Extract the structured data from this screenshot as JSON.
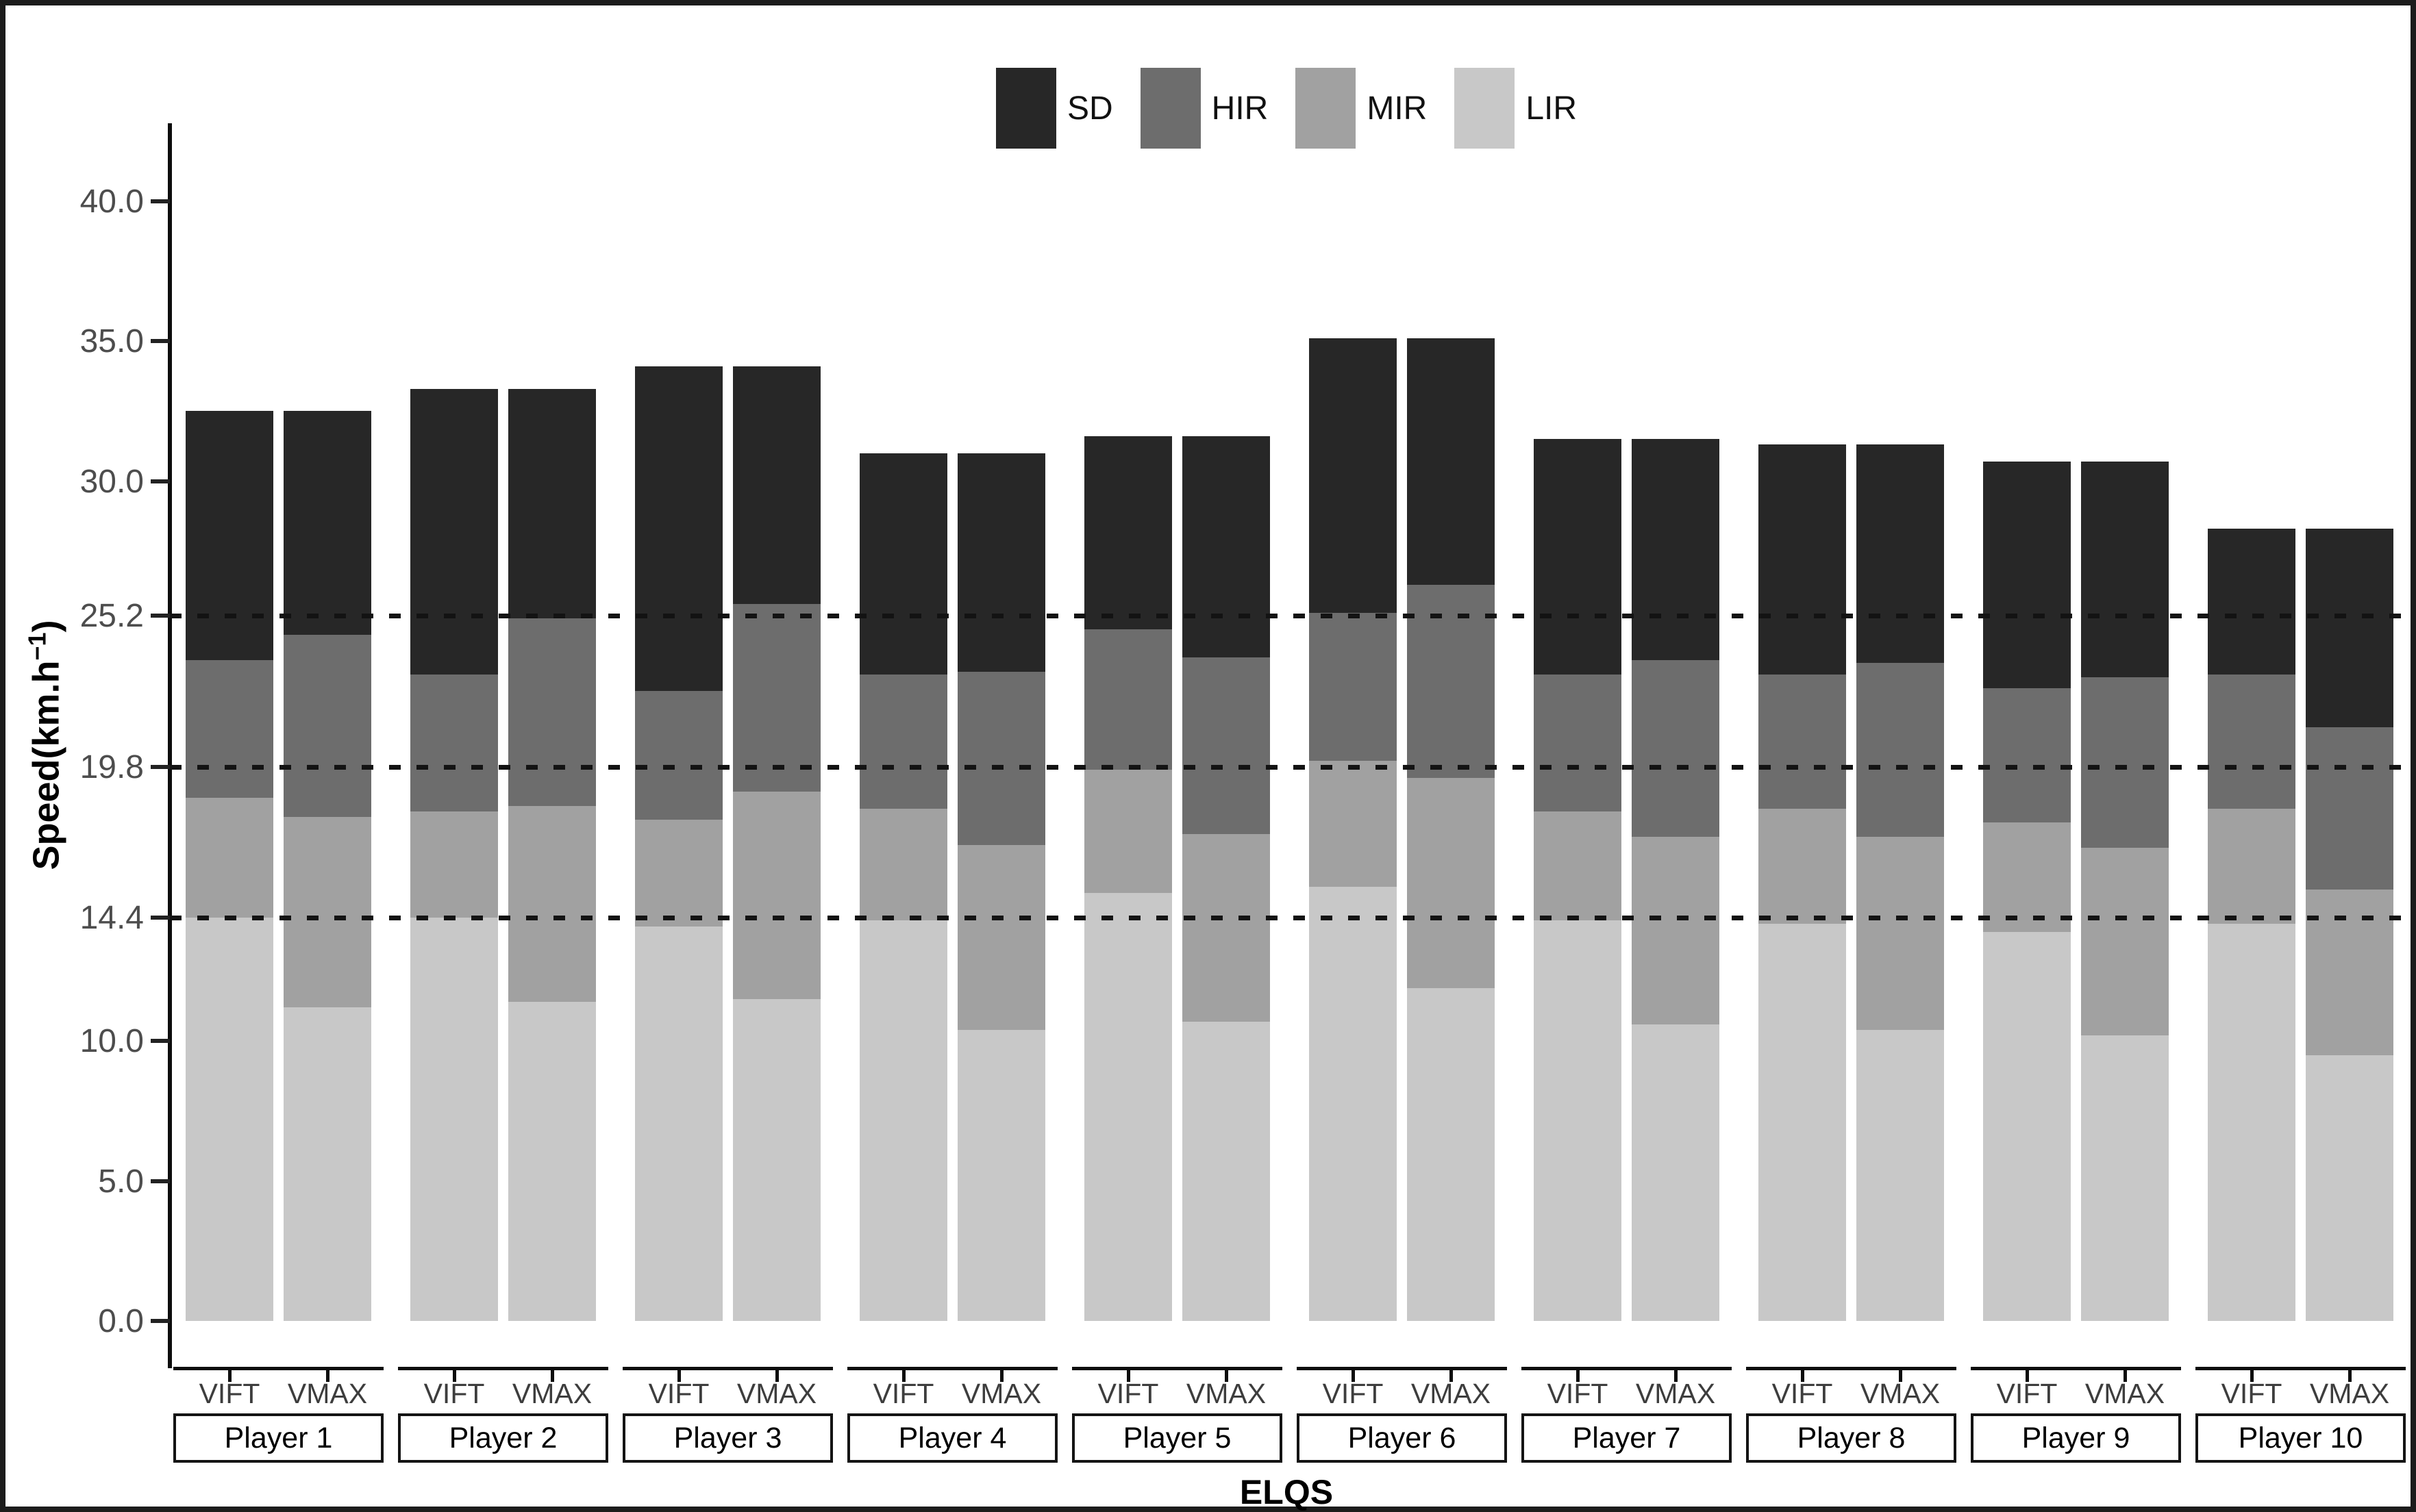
{
  "figure": {
    "ylabel_prefix": "Speed(km.h",
    "ylabel_sup": "−1",
    "ylabel_suffix": ")",
    "xlabel": "ELQS"
  },
  "legend": {
    "items": [
      {
        "label": "SD",
        "color": "#272727"
      },
      {
        "label": "HIR",
        "color": "#6d6d6d"
      },
      {
        "label": "MIR",
        "color": "#a1a1a1"
      },
      {
        "label": "LIR",
        "color": "#c8c8c8"
      }
    ]
  },
  "chart_data": {
    "type": "bar",
    "stacked": true,
    "orientation": "vertical",
    "ylabel": "Speed(km.h-1)",
    "xlabel": "ELQS",
    "legend_position": "top-center",
    "ylim": [
      0,
      42
    ],
    "yticks": [
      {
        "value": 0,
        "label": "0.0"
      },
      {
        "value": 5,
        "label": "5.0"
      },
      {
        "value": 10,
        "label": "10.0"
      },
      {
        "value": 14.4,
        "label": "14.4"
      },
      {
        "value": 19.8,
        "label": "19.8"
      },
      {
        "value": 25.2,
        "label": "25.2"
      },
      {
        "value": 30,
        "label": "30.0"
      },
      {
        "value": 35,
        "label": "35.0"
      },
      {
        "value": 40,
        "label": "40.0"
      }
    ],
    "ref_lines": [
      14.4,
      19.8,
      25.2
    ],
    "segments_bottom_to_top": [
      "LIR",
      "MIR",
      "HIR",
      "SD"
    ],
    "segment_colors": {
      "SD": "#272727",
      "HIR": "#6d6d6d",
      "MIR": "#a1a1a1",
      "LIR": "#c8c8c8"
    },
    "bar_labels": [
      "VIFT",
      "VMAX"
    ],
    "groups": [
      {
        "label": "Player 1",
        "bars": [
          {
            "label": "VIFT",
            "cumulative_tops": {
              "LIR": 14.4,
              "MIR": 18.7,
              "HIR": 23.6,
              "SD": 32.5
            }
          },
          {
            "label": "VMAX",
            "cumulative_tops": {
              "LIR": 11.2,
              "MIR": 18.0,
              "HIR": 24.5,
              "SD": 32.5
            }
          }
        ]
      },
      {
        "label": "Player 2",
        "bars": [
          {
            "label": "VIFT",
            "cumulative_tops": {
              "LIR": 14.4,
              "MIR": 18.2,
              "HIR": 23.1,
              "SD": 33.3
            }
          },
          {
            "label": "VMAX",
            "cumulative_tops": {
              "LIR": 11.4,
              "MIR": 18.4,
              "HIR": 25.1,
              "SD": 33.3
            }
          }
        ]
      },
      {
        "label": "Player 3",
        "bars": [
          {
            "label": "VIFT",
            "cumulative_tops": {
              "LIR": 14.1,
              "MIR": 17.9,
              "HIR": 22.5,
              "SD": 34.1
            }
          },
          {
            "label": "VMAX",
            "cumulative_tops": {
              "LIR": 11.5,
              "MIR": 18.9,
              "HIR": 25.6,
              "SD": 34.1
            }
          }
        ]
      },
      {
        "label": "Player 4",
        "bars": [
          {
            "label": "VIFT",
            "cumulative_tops": {
              "LIR": 14.3,
              "MIR": 18.3,
              "HIR": 23.1,
              "SD": 31.0
            }
          },
          {
            "label": "VMAX",
            "cumulative_tops": {
              "LIR": 10.4,
              "MIR": 17.0,
              "HIR": 23.2,
              "SD": 31.0
            }
          }
        ]
      },
      {
        "label": "Player 5",
        "bars": [
          {
            "label": "VIFT",
            "cumulative_tops": {
              "LIR": 15.3,
              "MIR": 19.7,
              "HIR": 24.7,
              "SD": 31.6
            }
          },
          {
            "label": "VMAX",
            "cumulative_tops": {
              "LIR": 10.7,
              "MIR": 17.4,
              "HIR": 23.7,
              "SD": 31.6
            }
          }
        ]
      },
      {
        "label": "Player 6",
        "bars": [
          {
            "label": "VIFT",
            "cumulative_tops": {
              "LIR": 15.5,
              "MIR": 20.0,
              "HIR": 25.3,
              "SD": 35.1
            }
          },
          {
            "label": "VMAX",
            "cumulative_tops": {
              "LIR": 11.9,
              "MIR": 19.4,
              "HIR": 26.3,
              "SD": 35.1
            }
          }
        ]
      },
      {
        "label": "Player 7",
        "bars": [
          {
            "label": "VIFT",
            "cumulative_tops": {
              "LIR": 14.3,
              "MIR": 18.2,
              "HIR": 23.1,
              "SD": 31.5
            }
          },
          {
            "label": "VMAX",
            "cumulative_tops": {
              "LIR": 10.6,
              "MIR": 17.3,
              "HIR": 23.6,
              "SD": 31.5
            }
          }
        ]
      },
      {
        "label": "Player 8",
        "bars": [
          {
            "label": "VIFT",
            "cumulative_tops": {
              "LIR": 14.2,
              "MIR": 18.3,
              "HIR": 23.1,
              "SD": 31.3
            }
          },
          {
            "label": "VMAX",
            "cumulative_tops": {
              "LIR": 10.4,
              "MIR": 17.3,
              "HIR": 23.5,
              "SD": 31.3
            }
          }
        ]
      },
      {
        "label": "Player 9",
        "bars": [
          {
            "label": "VIFT",
            "cumulative_tops": {
              "LIR": 13.9,
              "MIR": 17.8,
              "HIR": 22.6,
              "SD": 30.7
            }
          },
          {
            "label": "VMAX",
            "cumulative_tops": {
              "LIR": 10.2,
              "MIR": 16.9,
              "HIR": 23.0,
              "SD": 30.7
            }
          }
        ]
      },
      {
        "label": "Player 10",
        "bars": [
          {
            "label": "VIFT",
            "cumulative_tops": {
              "LIR": 14.2,
              "MIR": 18.3,
              "HIR": 23.1,
              "SD": 28.3
            }
          },
          {
            "label": "VMAX",
            "cumulative_tops": {
              "LIR": 9.5,
              "MIR": 15.4,
              "HIR": 21.2,
              "SD": 28.3
            }
          }
        ]
      }
    ]
  }
}
